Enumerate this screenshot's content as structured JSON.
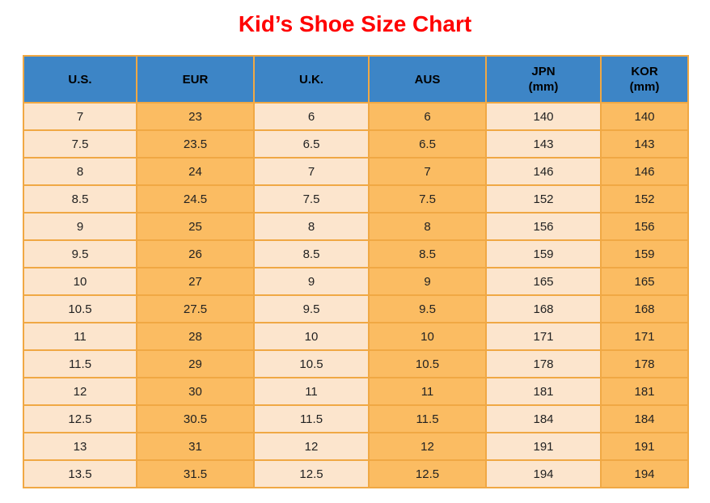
{
  "title": {
    "text": "Kid’s Shoe Size Chart",
    "color": "#ff0000"
  },
  "chart_data": {
    "type": "table",
    "title": "Kid’s Shoe Size Chart",
    "columns": [
      {
        "label": "U.S.",
        "unit": ""
      },
      {
        "label": "EUR",
        "unit": ""
      },
      {
        "label": "U.K.",
        "unit": ""
      },
      {
        "label": "AUS",
        "unit": ""
      },
      {
        "label": "JPN",
        "unit": "(mm)"
      },
      {
        "label": "KOR",
        "unit": "(mm)"
      }
    ],
    "rows": [
      [
        "7",
        "23",
        "6",
        "6",
        "140",
        "140"
      ],
      [
        "7.5",
        "23.5",
        "6.5",
        "6.5",
        "143",
        "143"
      ],
      [
        "8",
        "24",
        "7",
        "7",
        "146",
        "146"
      ],
      [
        "8.5",
        "24.5",
        "7.5",
        "7.5",
        "152",
        "152"
      ],
      [
        "9",
        "25",
        "8",
        "8",
        "156",
        "156"
      ],
      [
        "9.5",
        "26",
        "8.5",
        "8.5",
        "159",
        "159"
      ],
      [
        "10",
        "27",
        "9",
        "9",
        "165",
        "165"
      ],
      [
        "10.5",
        "27.5",
        "9.5",
        "9.5",
        "168",
        "168"
      ],
      [
        "11",
        "28",
        "10",
        "10",
        "171",
        "171"
      ],
      [
        "11.5",
        "29",
        "10.5",
        "10.5",
        "178",
        "178"
      ],
      [
        "12",
        "30",
        "11",
        "11",
        "181",
        "181"
      ],
      [
        "12.5",
        "30.5",
        "11.5",
        "11.5",
        "184",
        "184"
      ],
      [
        "13",
        "31",
        "12",
        "12",
        "191",
        "191"
      ],
      [
        "13.5",
        "31.5",
        "12.5",
        "12.5",
        "194",
        "194"
      ]
    ]
  },
  "style": {
    "colors": {
      "title_color": "#ff0000",
      "header_bg": "#3d85c6",
      "header_text": "#000000",
      "cell_light": "#fce5cd",
      "cell_orange": "#fbbc62",
      "border": "#f0a844",
      "cell_text": "#222222",
      "page_bg": "#ffffff"
    }
  }
}
